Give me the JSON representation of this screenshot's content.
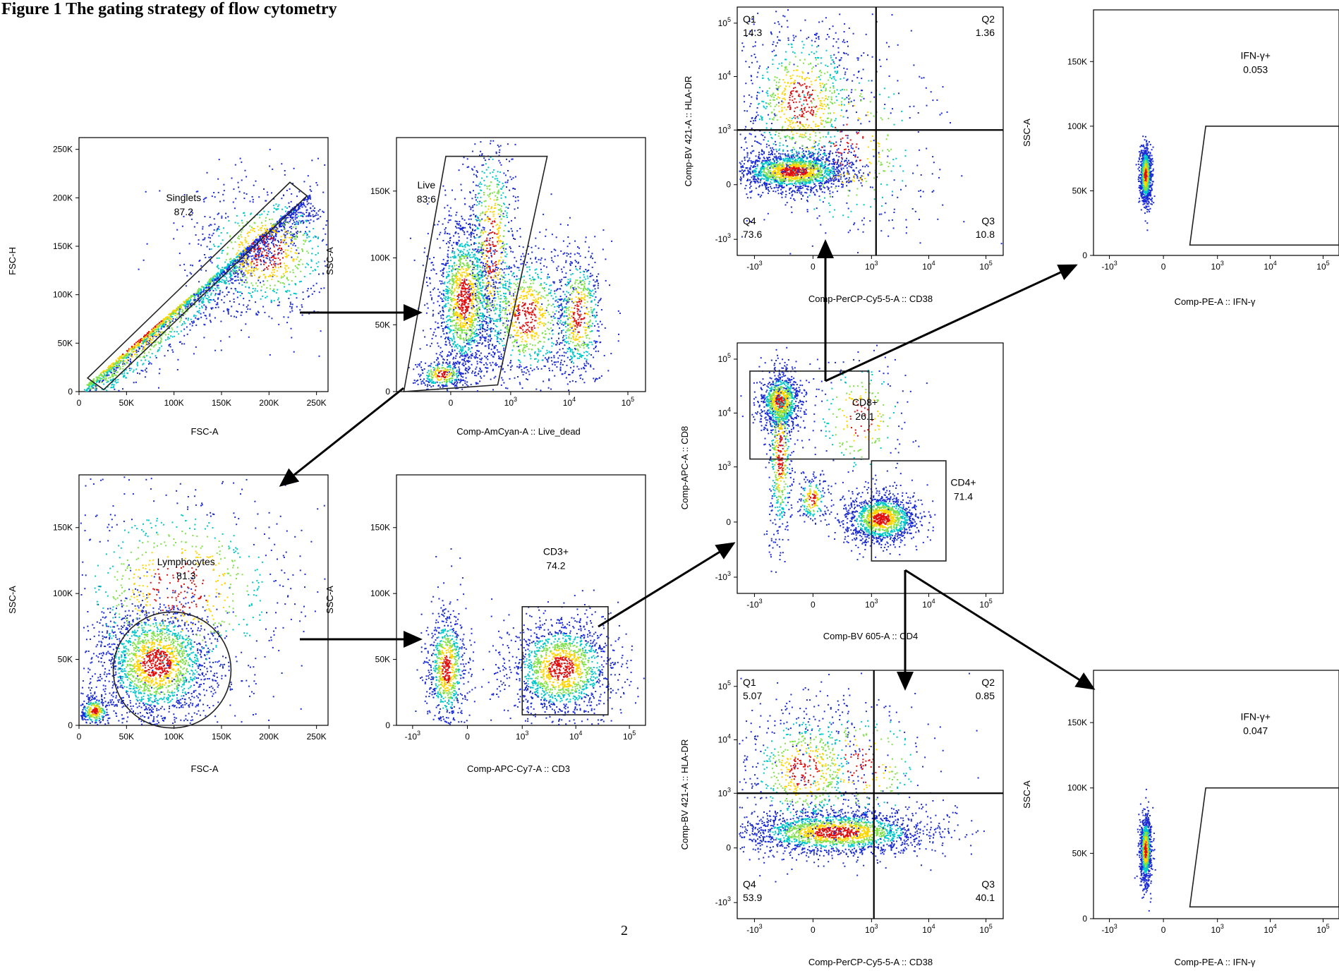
{
  "figure_title": "Figure 1 The gating strategy of flow cytometry",
  "page_number": "2",
  "colors": {
    "low": "#1a2bd6",
    "mid": "#00c8c8",
    "midhigh": "#7fe04a",
    "high": "#ffd400",
    "peak": "#e01010"
  },
  "chart_data": [
    {
      "id": "p1",
      "type": "scatter",
      "xlabel": "FSC-A",
      "ylabel": "FSC-H",
      "xlim": [
        0,
        262144
      ],
      "ylim": [
        0,
        262144
      ],
      "xscale": "linear",
      "yscale": "linear",
      "xticks": [
        {
          "v": 0,
          "t": "0"
        },
        {
          "v": 50000,
          "t": "50K"
        },
        {
          "v": 100000,
          "t": "100K"
        },
        {
          "v": 150000,
          "t": "150K"
        },
        {
          "v": 200000,
          "t": "200K"
        },
        {
          "v": 250000,
          "t": "250K"
        }
      ],
      "yticks": [
        {
          "v": 0,
          "t": "0"
        },
        {
          "v": 50000,
          "t": "50K"
        },
        {
          "v": 100000,
          "t": "100K"
        },
        {
          "v": 150000,
          "t": "150K"
        },
        {
          "v": 200000,
          "t": "200K"
        },
        {
          "v": 250000,
          "t": "250K"
        }
      ],
      "gates": [
        {
          "name": "Singlets",
          "value": "87.2",
          "kind": "polygon",
          "points": [
            [
              9000,
              14000
            ],
            [
              26000,
              2000
            ],
            [
              240000,
              202000
            ],
            [
              222000,
              216000
            ]
          ]
        }
      ]
    },
    {
      "id": "p2",
      "type": "scatter",
      "xlabel": "Comp-AmCyan-A :: Live_dead",
      "ylabel": "SSC-A",
      "xlim": [
        -800,
        200000
      ],
      "ylim": [
        0,
        190000
      ],
      "xscale": "log",
      "yscale": "linear",
      "xticks": [
        {
          "v": 0,
          "t": "0"
        },
        {
          "v": 1000,
          "t": "10",
          "s": "3"
        },
        {
          "v": 10000,
          "t": "10",
          "s": "4"
        },
        {
          "v": 100000,
          "t": "10",
          "s": "5"
        }
      ],
      "yticks": [
        {
          "v": 0,
          "t": "0"
        },
        {
          "v": 50000,
          "t": "50K"
        },
        {
          "v": 100000,
          "t": "100K"
        },
        {
          "v": 150000,
          "t": "150K"
        }
      ],
      "gates": [
        {
          "name": "Live",
          "value": "83.6",
          "kind": "polygon",
          "points": [
            [
              -600,
              0
            ],
            [
              -50,
              176000
            ],
            [
              4200,
              176000
            ],
            [
              600,
              5000
            ]
          ]
        }
      ]
    },
    {
      "id": "p3",
      "type": "scatter",
      "xlabel": "FSC-A",
      "ylabel": "SSC-A",
      "xlim": [
        0,
        262144
      ],
      "ylim": [
        0,
        190000
      ],
      "xscale": "linear",
      "yscale": "linear",
      "xticks": [
        {
          "v": 0,
          "t": "0"
        },
        {
          "v": 50000,
          "t": "50K"
        },
        {
          "v": 100000,
          "t": "100K"
        },
        {
          "v": 150000,
          "t": "150K"
        },
        {
          "v": 200000,
          "t": "200K"
        },
        {
          "v": 250000,
          "t": "250K"
        }
      ],
      "yticks": [
        {
          "v": 0,
          "t": "0"
        },
        {
          "v": 50000,
          "t": "50K"
        },
        {
          "v": 100000,
          "t": "100K"
        },
        {
          "v": 150000,
          "t": "150K"
        }
      ],
      "gates": [
        {
          "name": "Lymphocytes",
          "value": "81.3",
          "kind": "ellipse",
          "points": [
            [
              98000,
              42000
            ],
            [
              62000,
              44000
            ]
          ]
        }
      ]
    },
    {
      "id": "p4",
      "type": "scatter",
      "xlabel": "Comp-APC-Cy7-A :: CD3",
      "ylabel": "SSC-A",
      "xlim": [
        -2000,
        200000
      ],
      "ylim": [
        0,
        190000
      ],
      "xscale": "log",
      "yscale": "linear",
      "xticks": [
        {
          "v": -1000,
          "t": "-10",
          "s": "3"
        },
        {
          "v": 0,
          "t": "0"
        },
        {
          "v": 1000,
          "t": "10",
          "s": "3"
        },
        {
          "v": 10000,
          "t": "10",
          "s": "4"
        },
        {
          "v": 100000,
          "t": "10",
          "s": "5"
        }
      ],
      "yticks": [
        {
          "v": 0,
          "t": "0"
        },
        {
          "v": 50000,
          "t": "50K"
        },
        {
          "v": 100000,
          "t": "100K"
        },
        {
          "v": 150000,
          "t": "150K"
        }
      ],
      "gates": [
        {
          "name": "CD3+",
          "value": "74.2",
          "kind": "rect",
          "points": [
            [
              1000,
              8000
            ],
            [
              40000,
              90000
            ]
          ]
        }
      ]
    },
    {
      "id": "p5",
      "type": "scatter",
      "xlabel": "Comp-BV 605-A :: CD4",
      "ylabel": "Comp-APC-A :: CD8",
      "xlim": [
        -2000,
        200000
      ],
      "ylim": [
        -2000,
        200000
      ],
      "xscale": "log",
      "yscale": "log",
      "xticks": [
        {
          "v": -1000,
          "t": "-10",
          "s": "3"
        },
        {
          "v": 0,
          "t": "0"
        },
        {
          "v": 1000,
          "t": "10",
          "s": "3"
        },
        {
          "v": 10000,
          "t": "10",
          "s": "4"
        },
        {
          "v": 100000,
          "t": "10",
          "s": "5"
        }
      ],
      "yticks": [
        {
          "v": -1000,
          "t": "-10",
          "s": "3"
        },
        {
          "v": 0,
          "t": "0"
        },
        {
          "v": 1000,
          "t": "10",
          "s": "3"
        },
        {
          "v": 10000,
          "t": "10",
          "s": "4"
        },
        {
          "v": 100000,
          "t": "10",
          "s": "5"
        }
      ],
      "gates": [
        {
          "name": "CD8+",
          "value": "26.1",
          "kind": "rect",
          "points": [
            [
              -1200,
              1400
            ],
            [
              900,
              60000
            ]
          ]
        },
        {
          "name": "CD4+",
          "value": "71.4",
          "kind": "rect",
          "points": [
            [
              1000,
              -500
            ],
            [
              20000,
              1300
            ]
          ]
        }
      ]
    },
    {
      "id": "p6",
      "type": "scatter",
      "xlabel": "Comp-PerCP-Cy5-5-A :: CD38",
      "ylabel": "Comp-BV 421-A :: HLA-DR",
      "xlim": [
        -2000,
        200000
      ],
      "ylim": [
        -2000,
        200000
      ],
      "xscale": "log",
      "yscale": "log",
      "xticks": [
        {
          "v": -1000,
          "t": "-10",
          "s": "3"
        },
        {
          "v": 0,
          "t": "0"
        },
        {
          "v": 1000,
          "t": "10",
          "s": "3"
        },
        {
          "v": 10000,
          "t": "10",
          "s": "4"
        },
        {
          "v": 100000,
          "t": "10",
          "s": "5"
        }
      ],
      "yticks": [
        {
          "v": -1000,
          "t": "-10",
          "s": "3"
        },
        {
          "v": 0,
          "t": "0"
        },
        {
          "v": 1000,
          "t": "10",
          "s": "3"
        },
        {
          "v": 10000,
          "t": "10",
          "s": "4"
        },
        {
          "v": 100000,
          "t": "10",
          "s": "5"
        }
      ],
      "quadrants": {
        "x": 1200,
        "y": 1000,
        "labels": [
          {
            "q": "Q1",
            "v": "14.3"
          },
          {
            "q": "Q2",
            "v": "1.36"
          },
          {
            "q": "Q3",
            "v": "10.8"
          },
          {
            "q": "Q4",
            "v": "73.6"
          }
        ]
      }
    },
    {
      "id": "p7",
      "type": "scatter",
      "xlabel": "Comp-PE-A :: IFN-γ",
      "ylabel": "SSC-A",
      "xlim": [
        -2000,
        200000
      ],
      "ylim": [
        0,
        190000
      ],
      "xscale": "log",
      "yscale": "linear",
      "xticks": [
        {
          "v": -1000,
          "t": "-10",
          "s": "3"
        },
        {
          "v": 0,
          "t": "0"
        },
        {
          "v": 1000,
          "t": "10",
          "s": "3"
        },
        {
          "v": 10000,
          "t": "10",
          "s": "4"
        },
        {
          "v": 100000,
          "t": "10",
          "s": "5"
        }
      ],
      "yticks": [
        {
          "v": 0,
          "t": "0"
        },
        {
          "v": 50000,
          "t": "50K"
        },
        {
          "v": 100000,
          "t": "100K"
        },
        {
          "v": 150000,
          "t": "150K"
        }
      ],
      "gates": [
        {
          "name": "IFN-γ+",
          "value": "0.053",
          "kind": "polygon",
          "points": [
            [
              300,
              8000
            ],
            [
              600,
              100000
            ],
            [
              200000,
              100000
            ],
            [
              200000,
              8000
            ]
          ]
        }
      ]
    },
    {
      "id": "p8",
      "type": "scatter",
      "xlabel": "Comp-PerCP-Cy5-5-A :: CD38",
      "ylabel": "Comp-BV 421-A :: HLA-DR",
      "xlim": [
        -2000,
        200000
      ],
      "ylim": [
        -2000,
        200000
      ],
      "xscale": "log",
      "yscale": "log",
      "xticks": [
        {
          "v": -1000,
          "t": "-10",
          "s": "3"
        },
        {
          "v": 0,
          "t": "0"
        },
        {
          "v": 1000,
          "t": "10",
          "s": "3"
        },
        {
          "v": 10000,
          "t": "10",
          "s": "4"
        },
        {
          "v": 100000,
          "t": "10",
          "s": "5"
        }
      ],
      "yticks": [
        {
          "v": -1000,
          "t": "-10",
          "s": "3"
        },
        {
          "v": 0,
          "t": "0"
        },
        {
          "v": 1000,
          "t": "10",
          "s": "3"
        },
        {
          "v": 10000,
          "t": "10",
          "s": "4"
        },
        {
          "v": 100000,
          "t": "10",
          "s": "5"
        }
      ],
      "quadrants": {
        "x": 1100,
        "y": 1000,
        "labels": [
          {
            "q": "Q1",
            "v": "5.07"
          },
          {
            "q": "Q2",
            "v": "0.85"
          },
          {
            "q": "Q3",
            "v": "40.1"
          },
          {
            "q": "Q4",
            "v": "53.9"
          }
        ]
      }
    },
    {
      "id": "p9",
      "type": "scatter",
      "xlabel": "Comp-PE-A :: IFN-γ",
      "ylabel": "SSC-A",
      "xlim": [
        -2000,
        200000
      ],
      "ylim": [
        0,
        190000
      ],
      "xscale": "log",
      "yscale": "linear",
      "xticks": [
        {
          "v": -1000,
          "t": "-10",
          "s": "3"
        },
        {
          "v": 0,
          "t": "0"
        },
        {
          "v": 1000,
          "t": "10",
          "s": "3"
        },
        {
          "v": 10000,
          "t": "10",
          "s": "4"
        },
        {
          "v": 100000,
          "t": "10",
          "s": "5"
        }
      ],
      "yticks": [
        {
          "v": 0,
          "t": "0"
        },
        {
          "v": 50000,
          "t": "50K"
        },
        {
          "v": 100000,
          "t": "100K"
        },
        {
          "v": 150000,
          "t": "150K"
        }
      ],
      "gates": [
        {
          "name": "IFN-γ+",
          "value": "0.047",
          "kind": "polygon",
          "points": [
            [
              300,
              9000
            ],
            [
              600,
              100000
            ],
            [
              200000,
              100000
            ],
            [
              200000,
              9000
            ]
          ]
        }
      ]
    }
  ]
}
